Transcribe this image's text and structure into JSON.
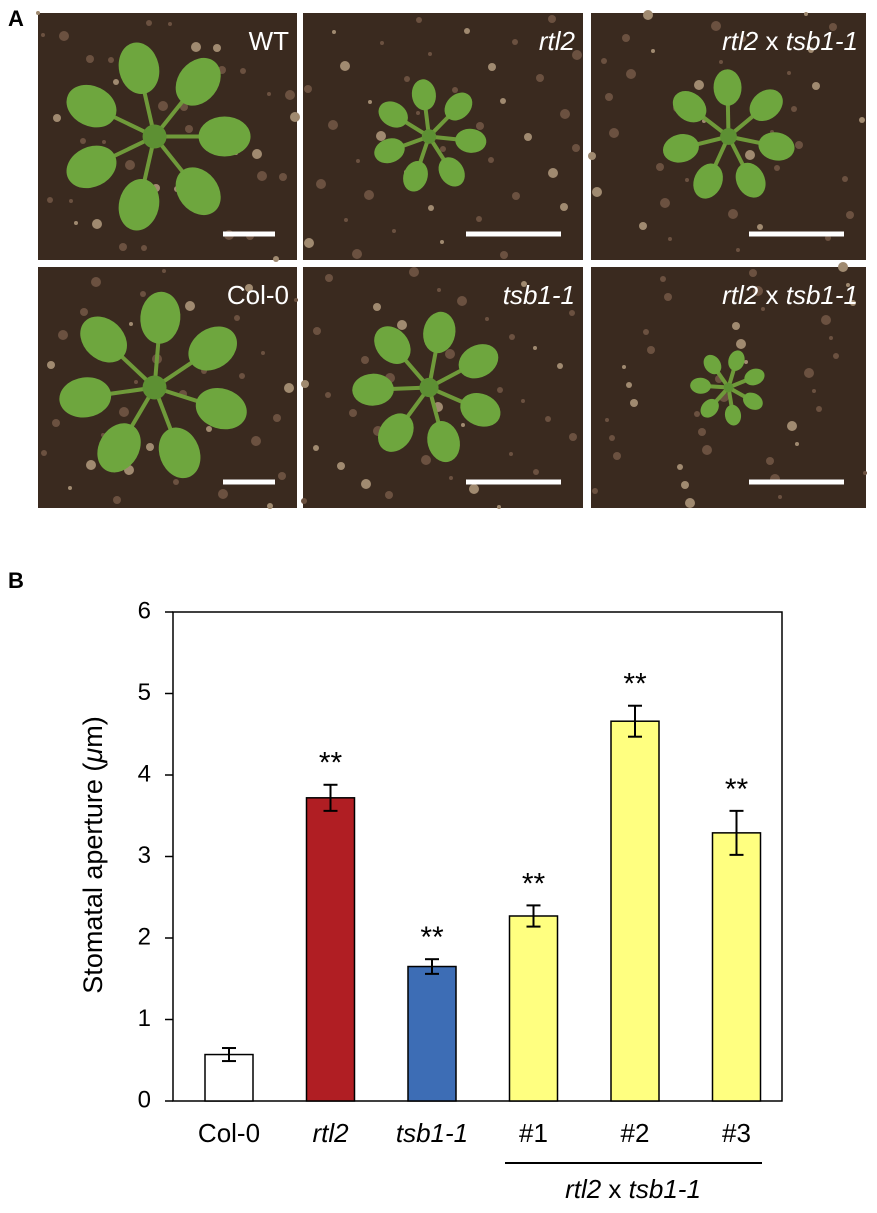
{
  "panel_a": {
    "label": "A",
    "photos": [
      {
        "label": "WT"
      },
      {
        "label": "rtl2"
      },
      {
        "label": "rtl2 x tsb1-1"
      },
      {
        "label": "Col-0"
      },
      {
        "label": "tsb1-1"
      },
      {
        "label": "rtl2 x tsb1-1"
      }
    ]
  },
  "chart_data": {
    "type": "bar",
    "panel_label": "B",
    "y_label": "Stomatal aperture (μm)",
    "categories": [
      "Col-0",
      "rtl2",
      "tsb1-1",
      "#1",
      "#2",
      "#3"
    ],
    "values": [
      0.57,
      3.72,
      1.65,
      2.27,
      4.66,
      3.29
    ],
    "errors": [
      0.08,
      0.16,
      0.09,
      0.13,
      0.19,
      0.27
    ],
    "colors": [
      "#ffffff",
      "#b01e23",
      "#3d6db5",
      "#ffff80",
      "#ffff80",
      "#ffff80"
    ],
    "value_annotations": [
      null,
      "**",
      "**",
      "**",
      "**",
      "**"
    ],
    "group_label": "rtl2 x tsb1-1",
    "ylim": [
      0,
      6
    ],
    "yticks": [
      0,
      1,
      2,
      3,
      4,
      5,
      6
    ]
  }
}
